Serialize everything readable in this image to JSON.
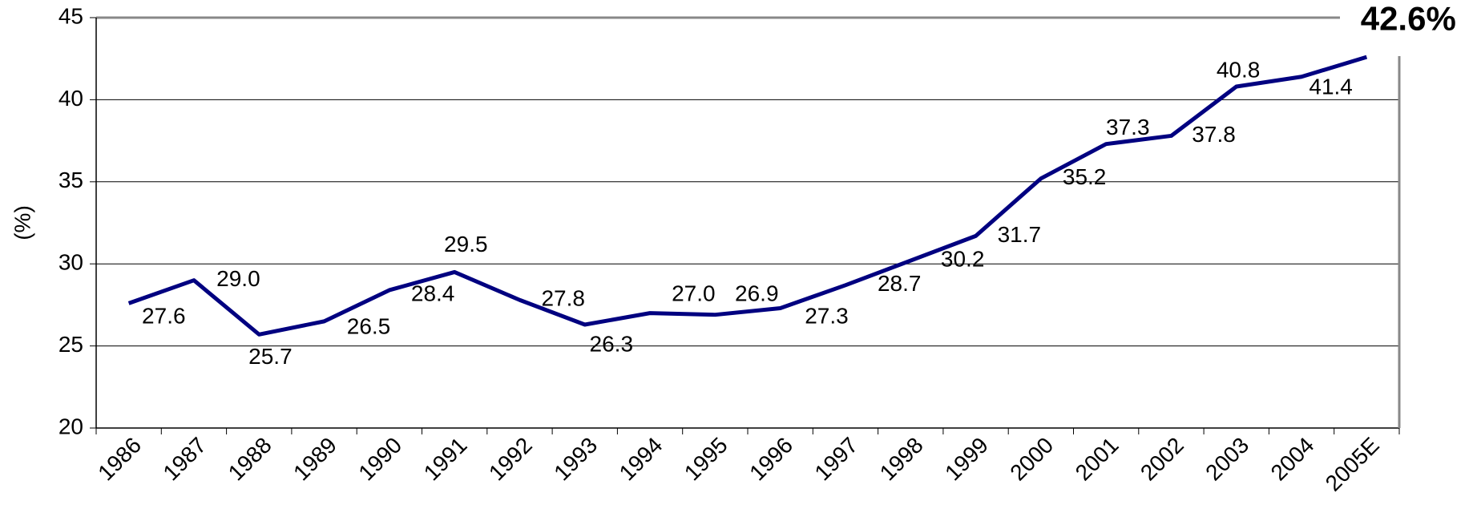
{
  "chart_data": {
    "type": "line",
    "categories": [
      "1986",
      "1987",
      "1988",
      "1989",
      "1990",
      "1991",
      "1992",
      "1993",
      "1994",
      "1995",
      "1996",
      "1997",
      "1998",
      "1999",
      "2000",
      "2001",
      "2002",
      "2003",
      "2004",
      "2005E"
    ],
    "series": [
      {
        "color": "#000080",
        "values": [
          27.6,
          29.0,
          25.7,
          26.5,
          28.4,
          29.5,
          27.8,
          26.3,
          27.0,
          26.9,
          27.3,
          28.7,
          30.2,
          31.7,
          35.2,
          37.3,
          37.8,
          40.8,
          41.4,
          42.6
        ],
        "value_labels": [
          "27.6",
          "29.0",
          "25.7",
          "26.5",
          "28.4",
          "29.5",
          "27.8",
          "26.3",
          "27.0",
          "26.9",
          "27.3",
          "28.7",
          "30.2",
          "31.7",
          "35.2",
          "37.3",
          "37.8",
          "40.8",
          "41.4",
          "42.6%"
        ]
      }
    ],
    "y_label": "(%)",
    "ylim": [
      20,
      45
    ],
    "yticks": [
      20,
      25,
      30,
      35,
      40,
      45
    ],
    "grid": true
  }
}
